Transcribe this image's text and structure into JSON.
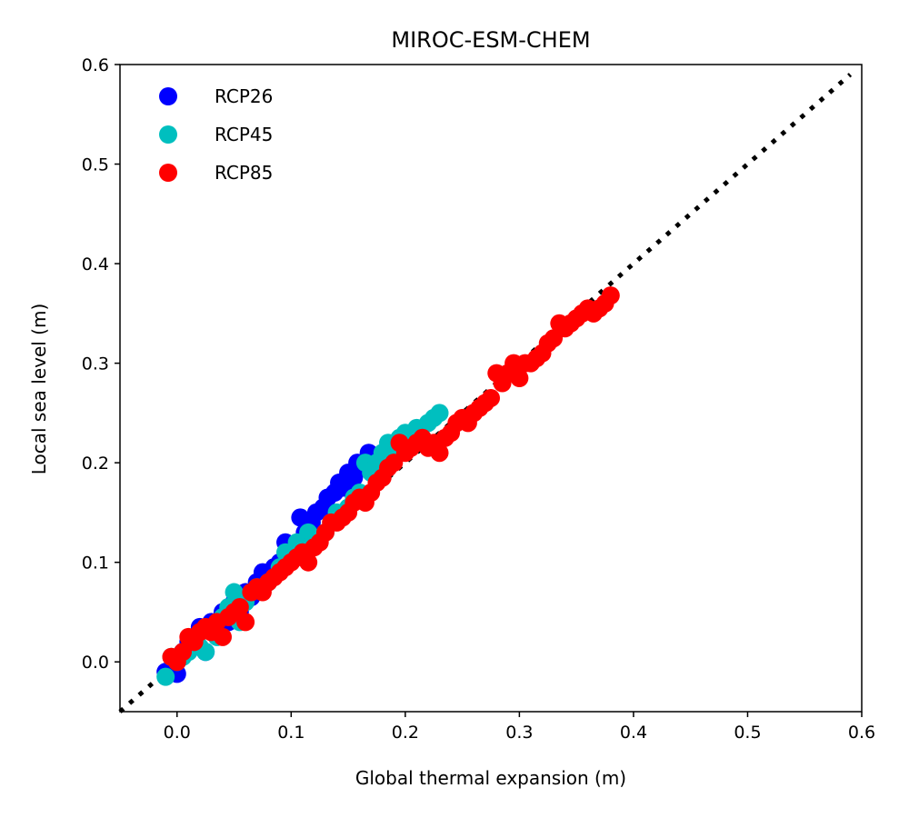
{
  "chart_data": {
    "type": "scatter",
    "title": "MIROC-ESM-CHEM",
    "xlabel": "Global thermal expansion (m)",
    "ylabel": "Local sea level (m)",
    "xlim": [
      -0.05,
      0.6
    ],
    "ylim": [
      -0.05,
      0.6
    ],
    "xticks": [
      "0.0",
      "0.1",
      "0.2",
      "0.3",
      "0.4",
      "0.5",
      "0.6"
    ],
    "yticks": [
      "0.0",
      "0.1",
      "0.2",
      "0.3",
      "0.4",
      "0.5",
      "0.6"
    ],
    "grid": false,
    "legend_position": "upper-left",
    "reference_line": {
      "style": "dotted",
      "color": "#000000",
      "from": [
        -0.05,
        -0.05
      ],
      "to": [
        0.59,
        0.59
      ]
    },
    "series": [
      {
        "name": "RCP26",
        "color": "#0000ff",
        "points": [
          [
            -0.01,
            -0.01
          ],
          [
            0.0,
            -0.012
          ],
          [
            0.0,
            0.0
          ],
          [
            0.005,
            0.01
          ],
          [
            0.01,
            0.02
          ],
          [
            0.015,
            0.015
          ],
          [
            0.02,
            0.035
          ],
          [
            0.025,
            0.01
          ],
          [
            0.03,
            0.04
          ],
          [
            0.035,
            0.03
          ],
          [
            0.04,
            0.05
          ],
          [
            0.045,
            0.04
          ],
          [
            0.05,
            0.06
          ],
          [
            0.055,
            0.05
          ],
          [
            0.06,
            0.07
          ],
          [
            0.065,
            0.065
          ],
          [
            0.07,
            0.08
          ],
          [
            0.075,
            0.09
          ],
          [
            0.08,
            0.085
          ],
          [
            0.085,
            0.095
          ],
          [
            0.09,
            0.1
          ],
          [
            0.095,
            0.12
          ],
          [
            0.1,
            0.11
          ],
          [
            0.105,
            0.115
          ],
          [
            0.108,
            0.145
          ],
          [
            0.112,
            0.13
          ],
          [
            0.118,
            0.14
          ],
          [
            0.122,
            0.15
          ],
          [
            0.128,
            0.155
          ],
          [
            0.132,
            0.165
          ],
          [
            0.138,
            0.17
          ],
          [
            0.142,
            0.18
          ],
          [
            0.146,
            0.175
          ],
          [
            0.15,
            0.19
          ],
          [
            0.155,
            0.185
          ],
          [
            0.158,
            0.2
          ],
          [
            0.162,
            0.195
          ],
          [
            0.168,
            0.21
          ],
          [
            0.172,
            0.2
          ]
        ]
      },
      {
        "name": "RCP45",
        "color": "#00bfbf",
        "points": [
          [
            -0.01,
            -0.015
          ],
          [
            -0.005,
            0.005
          ],
          [
            0.0,
            0.0
          ],
          [
            0.005,
            0.005
          ],
          [
            0.01,
            0.01
          ],
          [
            0.015,
            0.02
          ],
          [
            0.02,
            0.015
          ],
          [
            0.025,
            0.01
          ],
          [
            0.03,
            0.03
          ],
          [
            0.035,
            0.025
          ],
          [
            0.04,
            0.045
          ],
          [
            0.045,
            0.055
          ],
          [
            0.05,
            0.07
          ],
          [
            0.055,
            0.04
          ],
          [
            0.06,
            0.06
          ],
          [
            0.065,
            0.07
          ],
          [
            0.07,
            0.075
          ],
          [
            0.08,
            0.08
          ],
          [
            0.09,
            0.095
          ],
          [
            0.095,
            0.11
          ],
          [
            0.1,
            0.105
          ],
          [
            0.105,
            0.12
          ],
          [
            0.11,
            0.115
          ],
          [
            0.115,
            0.13
          ],
          [
            0.12,
            0.125
          ],
          [
            0.13,
            0.13
          ],
          [
            0.135,
            0.14
          ],
          [
            0.14,
            0.15
          ],
          [
            0.15,
            0.155
          ],
          [
            0.155,
            0.165
          ],
          [
            0.16,
            0.17
          ],
          [
            0.165,
            0.2
          ],
          [
            0.17,
            0.19
          ],
          [
            0.175,
            0.2
          ],
          [
            0.18,
            0.21
          ],
          [
            0.185,
            0.22
          ],
          [
            0.19,
            0.215
          ],
          [
            0.195,
            0.225
          ],
          [
            0.2,
            0.23
          ],
          [
            0.205,
            0.22
          ],
          [
            0.21,
            0.235
          ],
          [
            0.215,
            0.225
          ],
          [
            0.22,
            0.24
          ],
          [
            0.225,
            0.245
          ],
          [
            0.23,
            0.25
          ]
        ]
      },
      {
        "name": "RCP85",
        "color": "#ff0000",
        "points": [
          [
            -0.005,
            0.005
          ],
          [
            0.0,
            0.0
          ],
          [
            0.005,
            0.01
          ],
          [
            0.01,
            0.025
          ],
          [
            0.015,
            0.02
          ],
          [
            0.02,
            0.03
          ],
          [
            0.025,
            0.035
          ],
          [
            0.03,
            0.03
          ],
          [
            0.035,
            0.04
          ],
          [
            0.04,
            0.025
          ],
          [
            0.045,
            0.045
          ],
          [
            0.05,
            0.05
          ],
          [
            0.055,
            0.055
          ],
          [
            0.06,
            0.04
          ],
          [
            0.065,
            0.07
          ],
          [
            0.07,
            0.075
          ],
          [
            0.075,
            0.07
          ],
          [
            0.08,
            0.08
          ],
          [
            0.085,
            0.085
          ],
          [
            0.09,
            0.09
          ],
          [
            0.095,
            0.095
          ],
          [
            0.1,
            0.1
          ],
          [
            0.105,
            0.105
          ],
          [
            0.11,
            0.11
          ],
          [
            0.115,
            0.1
          ],
          [
            0.12,
            0.115
          ],
          [
            0.125,
            0.12
          ],
          [
            0.13,
            0.13
          ],
          [
            0.135,
            0.14
          ],
          [
            0.14,
            0.14
          ],
          [
            0.145,
            0.145
          ],
          [
            0.15,
            0.15
          ],
          [
            0.155,
            0.16
          ],
          [
            0.16,
            0.165
          ],
          [
            0.165,
            0.16
          ],
          [
            0.17,
            0.17
          ],
          [
            0.175,
            0.18
          ],
          [
            0.18,
            0.185
          ],
          [
            0.185,
            0.195
          ],
          [
            0.19,
            0.2
          ],
          [
            0.195,
            0.22
          ],
          [
            0.2,
            0.21
          ],
          [
            0.205,
            0.215
          ],
          [
            0.21,
            0.22
          ],
          [
            0.215,
            0.225
          ],
          [
            0.22,
            0.215
          ],
          [
            0.225,
            0.22
          ],
          [
            0.23,
            0.21
          ],
          [
            0.235,
            0.225
          ],
          [
            0.24,
            0.23
          ],
          [
            0.245,
            0.24
          ],
          [
            0.25,
            0.245
          ],
          [
            0.255,
            0.24
          ],
          [
            0.26,
            0.25
          ],
          [
            0.265,
            0.255
          ],
          [
            0.27,
            0.26
          ],
          [
            0.275,
            0.265
          ],
          [
            0.28,
            0.29
          ],
          [
            0.285,
            0.28
          ],
          [
            0.29,
            0.29
          ],
          [
            0.295,
            0.3
          ],
          [
            0.3,
            0.285
          ],
          [
            0.305,
            0.3
          ],
          [
            0.31,
            0.3
          ],
          [
            0.315,
            0.305
          ],
          [
            0.32,
            0.31
          ],
          [
            0.325,
            0.32
          ],
          [
            0.33,
            0.325
          ],
          [
            0.335,
            0.34
          ],
          [
            0.34,
            0.335
          ],
          [
            0.345,
            0.34
          ],
          [
            0.35,
            0.345
          ],
          [
            0.355,
            0.35
          ],
          [
            0.36,
            0.355
          ],
          [
            0.365,
            0.35
          ],
          [
            0.37,
            0.355
          ],
          [
            0.375,
            0.36
          ],
          [
            0.38,
            0.368
          ]
        ]
      }
    ]
  }
}
